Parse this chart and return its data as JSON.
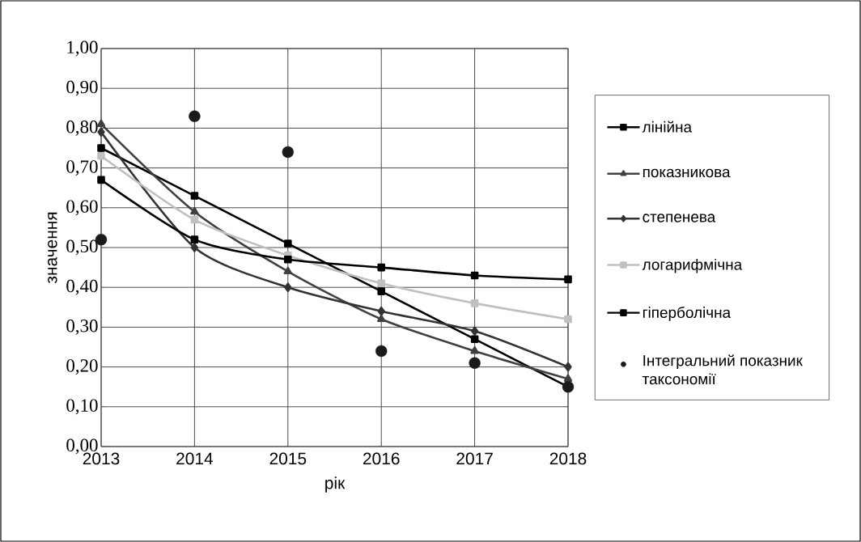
{
  "chart_data": {
    "type": "line",
    "xlabel": "рік",
    "ylabel": "значення",
    "categories": [
      "2013",
      "2014",
      "2015",
      "2016",
      "2017",
      "2018"
    ],
    "ylim": [
      0,
      1
    ],
    "yticks": [
      {
        "value": 0,
        "label": "0,00"
      },
      {
        "value": 0.1,
        "label": "0,10"
      },
      {
        "value": 0.2,
        "label": "0,20"
      },
      {
        "value": 0.3,
        "label": "0,30"
      },
      {
        "value": 0.4,
        "label": "0,40"
      },
      {
        "value": 0.5,
        "label": "0,50"
      },
      {
        "value": 0.6,
        "label": "0,60"
      },
      {
        "value": 0.7,
        "label": "0,70"
      },
      {
        "value": 0.8,
        "label": "0,80"
      },
      {
        "value": 0.9,
        "label": "0,90"
      },
      {
        "value": 1,
        "label": "1,00"
      }
    ],
    "grid": true,
    "legend": "right",
    "line_style": "solid",
    "series": [
      {
        "name": "лінійна",
        "color": "#000000",
        "marker": "square",
        "values": [
          0.75,
          0.63,
          0.51,
          0.39,
          0.27,
          0.15
        ]
      },
      {
        "name": "показникова",
        "color": "#404040",
        "marker": "triangle",
        "values": [
          0.81,
          0.59,
          0.44,
          0.32,
          0.24,
          0.17
        ]
      },
      {
        "name": "степенева",
        "color": "#333333",
        "marker": "diamond",
        "values": [
          0.79,
          0.5,
          0.4,
          0.34,
          0.29,
          0.2
        ]
      },
      {
        "name": "логарифмічна",
        "color": "#c0c0c0",
        "marker": "square",
        "values": [
          0.73,
          0.57,
          0.48,
          0.41,
          0.36,
          0.32
        ]
      },
      {
        "name": "гіперболічна",
        "color": "#000000",
        "marker": "square",
        "values": [
          0.67,
          0.52,
          0.47,
          0.45,
          0.43,
          0.42
        ]
      },
      {
        "name": "Інтегральний показник таксономії",
        "type": "scatter",
        "color": "#1a1a1a",
        "marker": "circle",
        "values": [
          0.52,
          0.83,
          0.74,
          0.24,
          0.21,
          0.15
        ]
      }
    ]
  }
}
